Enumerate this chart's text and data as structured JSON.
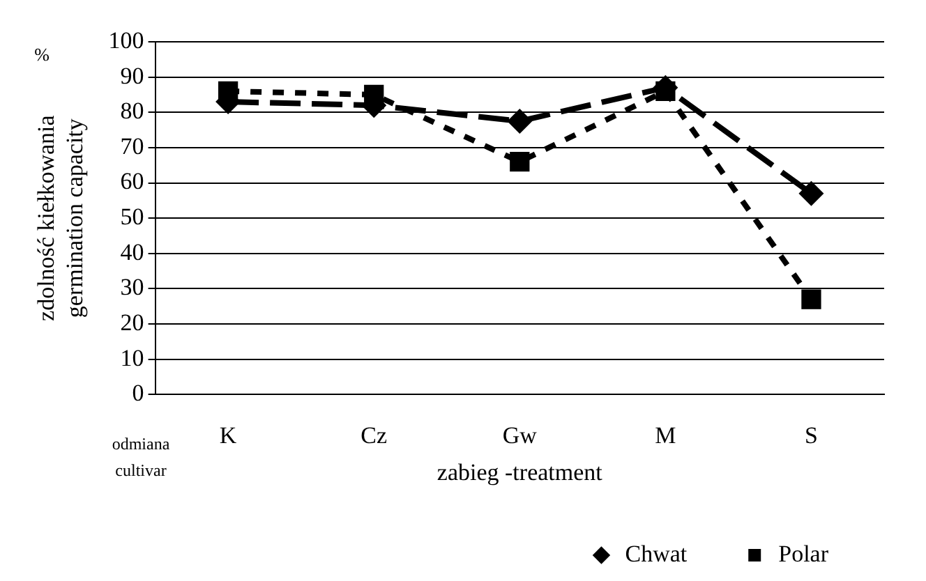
{
  "chart_data": {
    "type": "line",
    "xlabel": "zabieg -treatment",
    "ylabel": "zdolność kiełkowania\ngermination capacity",
    "annotations": [
      "%",
      "odmiana\ncultivar"
    ],
    "categories": [
      "K",
      "Cz",
      "Gw",
      "M",
      "S"
    ],
    "series": [
      {
        "name": "Chwat",
        "color": "#000000",
        "values": [
          83,
          82,
          77.5,
          87,
          57
        ],
        "marker": "diamond",
        "line_style": "dashed"
      },
      {
        "name": "Polar",
        "color": "#000000",
        "values": [
          86,
          85,
          66,
          86,
          27
        ],
        "marker": "square",
        "line_style": "dotted"
      }
    ],
    "ylim": [
      0,
      100
    ],
    "yticks": [
      0,
      10,
      20,
      30,
      40,
      50,
      60,
      70,
      80,
      90,
      100
    ],
    "grid": "y",
    "legend": "bottom right"
  }
}
